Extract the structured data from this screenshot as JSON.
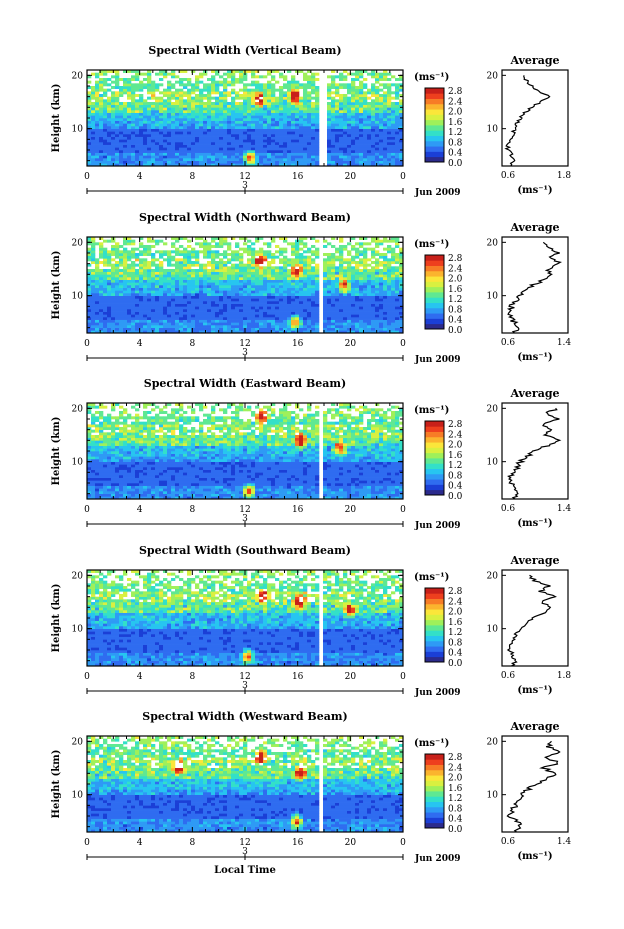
{
  "figure": {
    "x_axis_label": "Local Time",
    "date_label": "3",
    "month_year_label": "Jun 2009",
    "colorbar_unit": "(ms⁻¹)",
    "colorbar_ticks": [
      "2.8",
      "2.4",
      "2.0",
      "1.6",
      "1.2",
      "0.8",
      "0.4",
      "0.0"
    ],
    "colormap": [
      "#2b2a8c",
      "#1b3fd6",
      "#2f6cf0",
      "#2e9af5",
      "#27c5f0",
      "#33e0c8",
      "#5fe892",
      "#9ff05a",
      "#d9f040",
      "#fbe63a",
      "#fbb42e",
      "#f77c26",
      "#ee3f1e",
      "#c8201a"
    ],
    "avg_title": "Average",
    "avg_ylabel_ticks": [
      "20",
      "10"
    ],
    "avg_xunit": "(ms⁻¹)"
  },
  "chart_data": [
    {
      "type": "heatmap",
      "title": "Spectral Width (Vertical Beam)",
      "ylabel": "Height (km)",
      "xlabel": "",
      "xlim": [
        0,
        24
      ],
      "ylim": [
        3,
        21
      ],
      "x_ticks": [
        "0",
        "4",
        "8",
        "12",
        "16",
        "20",
        "0"
      ],
      "y_ticks": [
        "20",
        "10"
      ],
      "value_range": [
        0.0,
        2.8
      ],
      "data_gap_hours": [
        17.7,
        18.2
      ],
      "hot_spots": [
        {
          "x": 13.1,
          "y": 15.5
        },
        {
          "x": 15.8,
          "y": 16.2
        },
        {
          "x": 12.4,
          "y": 4.5
        }
      ],
      "average_profile": {
        "title": "Average",
        "xlim": [
          0.6,
          1.8
        ],
        "x_ticks": [
          "0.6",
          "1.8"
        ],
        "xunit": "(ms⁻¹)",
        "height": [
          3,
          4,
          5,
          6,
          7,
          8,
          9,
          10,
          11,
          12,
          13,
          14,
          15,
          16,
          17,
          18,
          19,
          20
        ],
        "value": [
          0.75,
          0.82,
          0.78,
          0.7,
          0.72,
          0.76,
          0.8,
          0.82,
          0.88,
          0.95,
          1.0,
          1.15,
          1.3,
          1.45,
          1.25,
          1.15,
          1.05,
          1.0
        ]
      }
    },
    {
      "type": "heatmap",
      "title": "Spectral Width (Northward Beam)",
      "ylabel": "Height (km)",
      "xlabel": "",
      "xlim": [
        0,
        24
      ],
      "ylim": [
        3,
        21
      ],
      "x_ticks": [
        "0",
        "4",
        "8",
        "12",
        "16",
        "20",
        "0"
      ],
      "y_ticks": [
        "20",
        "10"
      ],
      "value_range": [
        0.0,
        2.8
      ],
      "data_gap_hours": [
        17.6,
        18.0
      ],
      "hot_spots": [
        {
          "x": 13.2,
          "y": 16.5
        },
        {
          "x": 15.9,
          "y": 14.5
        },
        {
          "x": 19.5,
          "y": 12.0
        },
        {
          "x": 15.8,
          "y": 5.0
        }
      ],
      "average_profile": {
        "title": "Average",
        "xlim": [
          0.6,
          1.4
        ],
        "x_ticks": [
          "0.6",
          "1.4"
        ],
        "xunit": "(ms⁻¹)",
        "height": [
          3,
          4,
          5,
          6,
          7,
          8,
          9,
          10,
          11,
          12,
          13,
          14,
          15,
          16,
          17,
          18,
          19,
          20
        ],
        "value": [
          0.72,
          0.8,
          0.76,
          0.68,
          0.7,
          0.72,
          0.76,
          0.8,
          0.88,
          0.98,
          1.1,
          1.2,
          1.15,
          1.3,
          1.18,
          1.28,
          1.2,
          1.1
        ]
      }
    },
    {
      "type": "heatmap",
      "title": "Spectral Width (Eastward Beam)",
      "ylabel": "Height (km)",
      "xlabel": "",
      "xlim": [
        0,
        24
      ],
      "ylim": [
        3,
        21
      ],
      "x_ticks": [
        "0",
        "4",
        "8",
        "12",
        "16",
        "20",
        "0"
      ],
      "y_ticks": [
        "20",
        "10"
      ],
      "value_range": [
        0.0,
        2.8
      ],
      "data_gap_hours": [
        17.6,
        18.0
      ],
      "hot_spots": [
        {
          "x": 13.3,
          "y": 18.5
        },
        {
          "x": 16.2,
          "y": 14.0
        },
        {
          "x": 19.2,
          "y": 12.5
        },
        {
          "x": 12.3,
          "y": 4.5
        }
      ],
      "average_profile": {
        "title": "Average",
        "xlim": [
          0.6,
          1.4
        ],
        "x_ticks": [
          "0.6",
          "1.4"
        ],
        "xunit": "(ms⁻¹)",
        "height": [
          3,
          4,
          5,
          6,
          7,
          8,
          9,
          10,
          11,
          12,
          13,
          14,
          15,
          16,
          17,
          18,
          19,
          20
        ],
        "value": [
          0.74,
          0.8,
          0.78,
          0.7,
          0.7,
          0.74,
          0.78,
          0.82,
          0.9,
          1.0,
          1.15,
          1.3,
          1.1,
          1.2,
          1.1,
          1.3,
          1.15,
          1.25
        ]
      }
    },
    {
      "type": "heatmap",
      "title": "Spectral Width (Southward Beam)",
      "ylabel": "Height (km)",
      "xlabel": "",
      "xlim": [
        0,
        24
      ],
      "ylim": [
        3,
        21
      ],
      "x_ticks": [
        "0",
        "4",
        "8",
        "12",
        "16",
        "20",
        "0"
      ],
      "y_ticks": [
        "20",
        "10"
      ],
      "value_range": [
        0.0,
        2.8
      ],
      "data_gap_hours": [
        17.6,
        18.0
      ],
      "hot_spots": [
        {
          "x": 13.3,
          "y": 16.0
        },
        {
          "x": 16.1,
          "y": 15.0
        },
        {
          "x": 20.0,
          "y": 13.5
        },
        {
          "x": 12.2,
          "y": 4.8
        }
      ],
      "average_profile": {
        "title": "Average",
        "xlim": [
          0.6,
          1.8
        ],
        "x_ticks": [
          "0.6",
          "1.8"
        ],
        "xunit": "(ms⁻¹)",
        "height": [
          3,
          4,
          5,
          6,
          7,
          8,
          9,
          10,
          11,
          12,
          13,
          14,
          15,
          16,
          17,
          18,
          19,
          20
        ],
        "value": [
          0.78,
          0.85,
          0.8,
          0.74,
          0.76,
          0.8,
          0.86,
          0.95,
          1.05,
          1.15,
          1.35,
          1.5,
          1.3,
          1.55,
          1.3,
          1.45,
          1.2,
          1.1
        ]
      }
    },
    {
      "type": "heatmap",
      "title": "Spectral Width (Westward Beam)",
      "ylabel": "Height (km)",
      "xlabel": "Local Time",
      "xlim": [
        0,
        24
      ],
      "ylim": [
        3,
        21
      ],
      "x_ticks": [
        "0",
        "4",
        "8",
        "12",
        "16",
        "20",
        "0"
      ],
      "y_ticks": [
        "20",
        "10"
      ],
      "value_range": [
        0.0,
        2.8
      ],
      "data_gap_hours": [
        17.6,
        18.0
      ],
      "hot_spots": [
        {
          "x": 13.2,
          "y": 17.0
        },
        {
          "x": 7.0,
          "y": 15.0
        },
        {
          "x": 16.2,
          "y": 14.0
        },
        {
          "x": 15.9,
          "y": 5.0
        }
      ],
      "average_profile": {
        "title": "Average",
        "xlim": [
          0.6,
          1.4
        ],
        "x_ticks": [
          "0.6",
          "1.4"
        ],
        "xunit": "(ms⁻¹)",
        "height": [
          3,
          4,
          5,
          6,
          7,
          8,
          9,
          10,
          11,
          12,
          13,
          14,
          15,
          16,
          17,
          18,
          19,
          20
        ],
        "value": [
          0.74,
          0.82,
          0.78,
          0.7,
          0.72,
          0.76,
          0.8,
          0.84,
          0.92,
          1.02,
          1.15,
          1.25,
          1.1,
          1.28,
          1.12,
          1.3,
          1.15,
          1.2
        ]
      }
    }
  ]
}
